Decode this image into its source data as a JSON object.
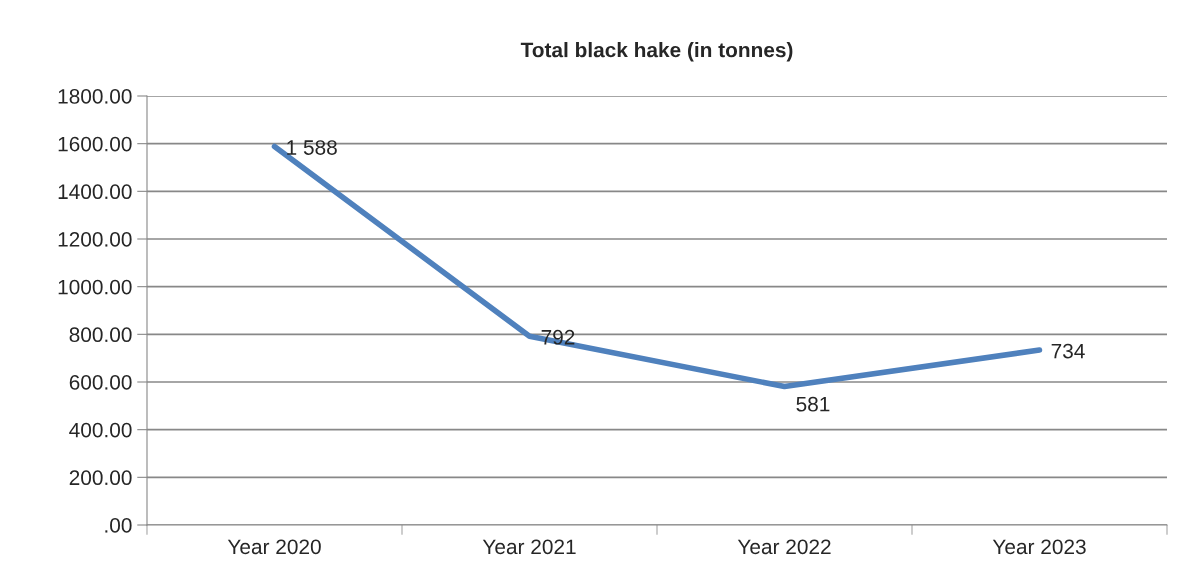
{
  "chart_data": {
    "type": "line",
    "title": "Total black hake (in tonnes)",
    "categories": [
      "Year 2020",
      "Year 2021",
      "Year 2022",
      "Year 2023"
    ],
    "series": [
      {
        "color": "#4f81bd",
        "values": [
          1588,
          792,
          581,
          734
        ],
        "value_labels": [
          "1 588",
          "792",
          "581",
          "734"
        ]
      }
    ],
    "ylim": [
      0,
      1800
    ],
    "yticks": [
      {
        "value": 0,
        "label": ".00"
      },
      {
        "value": 200,
        "label": "200.00"
      },
      {
        "value": 400,
        "label": "400.00"
      },
      {
        "value": 600,
        "label": "600.00"
      },
      {
        "value": 800,
        "label": "800.00"
      },
      {
        "value": 1000,
        "label": "1000.00"
      },
      {
        "value": 1200,
        "label": "1200.00"
      },
      {
        "value": 1400,
        "label": "1400.00"
      },
      {
        "value": 1600,
        "label": "1600.00"
      },
      {
        "value": 1800,
        "label": "1800.00"
      }
    ],
    "grid": "y",
    "marker": "none",
    "line_style": "solid",
    "legend": false
  }
}
